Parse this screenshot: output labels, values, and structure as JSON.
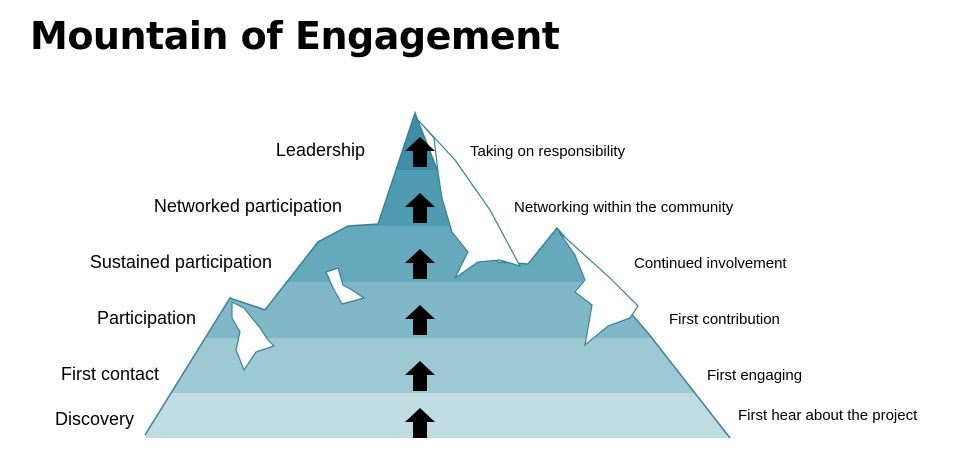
{
  "title": "Mountain of Engagement",
  "levels": [
    {
      "stage": "Leadership",
      "description": "Taking on responsibility",
      "color": "#3f8ea5"
    },
    {
      "stage": "Networked participation",
      "description": "Networking within the community",
      "color": "#4f9bb1"
    },
    {
      "stage": "Sustained participation",
      "description": "Continued involvement",
      "color": "#66a9bd"
    },
    {
      "stage": "Participation",
      "description": "First contribution",
      "color": "#80b8c8"
    },
    {
      "stage": "First contact",
      "description": "First engaging",
      "color": "#9dc9d4"
    },
    {
      "stage": "Discovery",
      "description": "First hear about the project",
      "color": "#c0dce3"
    }
  ],
  "colors": {
    "snow": "#ffffff",
    "edge": "#3a8196",
    "arrow": "#000000"
  },
  "icons": {
    "level_arrow": "up-arrow-icon"
  }
}
